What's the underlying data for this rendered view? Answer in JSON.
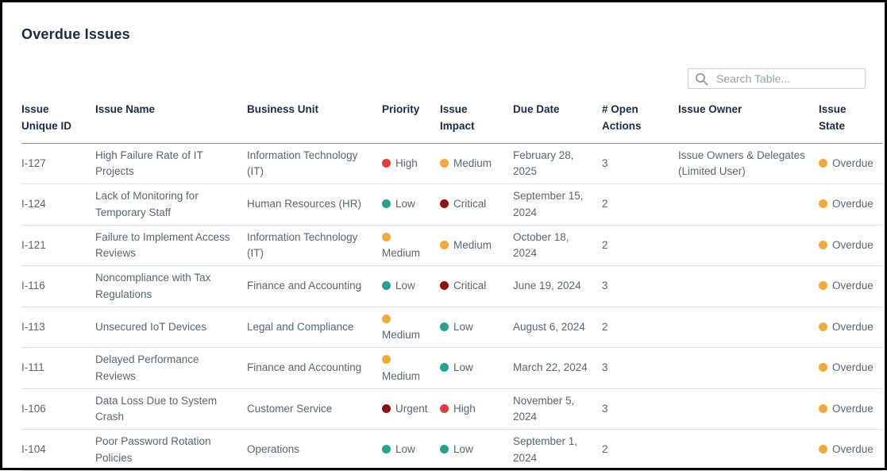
{
  "page": {
    "title": "Overdue Issues"
  },
  "search": {
    "placeholder": "Search Table...",
    "icon": "magnifier"
  },
  "colors": {
    "high": "#e33b3b",
    "medium": "#f2a93b",
    "low": "#28a08e",
    "critical": "#8e1111",
    "urgent": "#8e1111",
    "overdue": "#f2a93b",
    "header_text": "#1c2b45",
    "body_text": "#5b6570"
  },
  "table": {
    "columns": [
      "Issue Unique ID",
      "Issue Name",
      "Business Unit",
      "Priority",
      "Issue Impact",
      "Due Date",
      "# Open Actions",
      "Issue Owner",
      "Issue State"
    ],
    "rows": [
      {
        "id": "I-127",
        "name": "High Failure Rate of IT Projects",
        "business_unit": "Information Technology (IT)",
        "priority": {
          "label": "High",
          "color": "#e33b3b"
        },
        "impact": {
          "label": "Medium",
          "color": "#f2a93b"
        },
        "due_date": "February 28, 2025",
        "open_actions": "3",
        "owner": "Issue Owners & Delegates (Limited User)",
        "state": {
          "label": "Overdue",
          "color": "#f2a93b"
        }
      },
      {
        "id": "I-124",
        "name": "Lack of Monitoring for Temporary Staff",
        "business_unit": "Human Resources (HR)",
        "priority": {
          "label": "Low",
          "color": "#28a08e"
        },
        "impact": {
          "label": "Critical",
          "color": "#8e1111"
        },
        "due_date": "September 15, 2024",
        "open_actions": "2",
        "owner": "",
        "state": {
          "label": "Overdue",
          "color": "#f2a93b"
        }
      },
      {
        "id": "I-121",
        "name": "Failure to Implement Access Reviews",
        "business_unit": "Information Technology (IT)",
        "priority": {
          "label": "Medium",
          "color": "#f2a93b"
        },
        "impact": {
          "label": "Medium",
          "color": "#f2a93b"
        },
        "due_date": "October 18, 2024",
        "open_actions": "2",
        "owner": "",
        "state": {
          "label": "Overdue",
          "color": "#f2a93b"
        }
      },
      {
        "id": "I-116",
        "name": "Noncompliance with Tax Regulations",
        "business_unit": "Finance and Accounting",
        "priority": {
          "label": "Low",
          "color": "#28a08e"
        },
        "impact": {
          "label": "Critical",
          "color": "#8e1111"
        },
        "due_date": "June 19, 2024",
        "open_actions": "3",
        "owner": "",
        "state": {
          "label": "Overdue",
          "color": "#f2a93b"
        }
      },
      {
        "id": "I-113",
        "name": "Unsecured IoT Devices",
        "business_unit": "Legal and Compliance",
        "priority": {
          "label": "Medium",
          "color": "#f2a93b"
        },
        "impact": {
          "label": "Low",
          "color": "#28a08e"
        },
        "due_date": "August 6, 2024",
        "open_actions": "2",
        "owner": "",
        "state": {
          "label": "Overdue",
          "color": "#f2a93b"
        }
      },
      {
        "id": "I-111",
        "name": "Delayed Performance Reviews",
        "business_unit": "Finance and Accounting",
        "priority": {
          "label": "Medium",
          "color": "#f2a93b"
        },
        "impact": {
          "label": "Low",
          "color": "#28a08e"
        },
        "due_date": "March 22, 2024",
        "open_actions": "3",
        "owner": "",
        "state": {
          "label": "Overdue",
          "color": "#f2a93b"
        }
      },
      {
        "id": "I-106",
        "name": "Data Loss Due to System Crash",
        "business_unit": "Customer Service",
        "priority": {
          "label": "Urgent",
          "color": "#8e1111"
        },
        "impact": {
          "label": "High",
          "color": "#e33b3b"
        },
        "due_date": "November 5, 2024",
        "open_actions": "3",
        "owner": "",
        "state": {
          "label": "Overdue",
          "color": "#f2a93b"
        }
      },
      {
        "id": "I-104",
        "name": "Poor Password Rotation Policies",
        "business_unit": "Operations",
        "priority": {
          "label": "Low",
          "color": "#28a08e"
        },
        "impact": {
          "label": "Low",
          "color": "#28a08e"
        },
        "due_date": "September 1, 2024",
        "open_actions": "2",
        "owner": "",
        "state": {
          "label": "Overdue",
          "color": "#f2a93b"
        }
      }
    ]
  }
}
